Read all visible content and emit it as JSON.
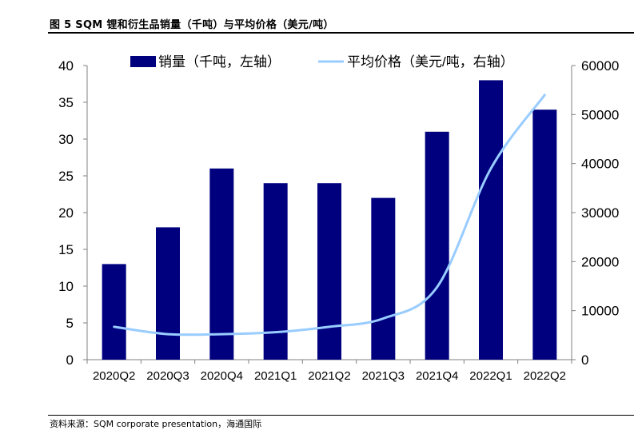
{
  "header": {
    "title": "图 5 SQM 锂和衍生品销量（千吨）与平均价格（美元/吨）"
  },
  "footer": {
    "source": "资料来源：SQM corporate presentation，海通国际"
  },
  "chart_data": {
    "type": "bar",
    "categories": [
      "2020Q2",
      "2020Q3",
      "2020Q4",
      "2021Q1",
      "2021Q2",
      "2021Q3",
      "2021Q4",
      "2022Q1",
      "2022Q2"
    ],
    "series": [
      {
        "name": "销量（千吨，左轴）",
        "type": "bar",
        "axis": "left",
        "values": [
          13,
          18,
          26,
          24,
          24,
          22,
          31,
          38,
          34
        ],
        "color": "#00007f"
      },
      {
        "name": "平均价格（美元/吨，右轴）",
        "type": "line",
        "axis": "right",
        "values": [
          6700,
          5200,
          5200,
          5600,
          6700,
          8400,
          14800,
          39000,
          54000
        ],
        "color": "#99ccff"
      }
    ],
    "y_left": {
      "lim": [
        0,
        40
      ],
      "ticks": [
        "0",
        "5",
        "10",
        "15",
        "20",
        "25",
        "30",
        "35",
        "40"
      ]
    },
    "y_right": {
      "lim": [
        0,
        60000
      ],
      "ticks": [
        "0",
        "10000",
        "20000",
        "30000",
        "40000",
        "50000",
        "60000"
      ]
    },
    "grid": false,
    "legend_placement": "top"
  }
}
